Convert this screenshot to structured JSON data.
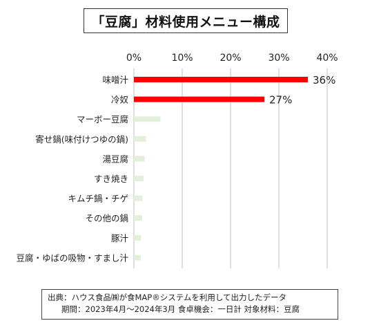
{
  "chart_data": {
    "type": "bar",
    "orientation": "horizontal",
    "title": "「豆腐」材料使用メニュー構成",
    "categories": [
      "味噌汁",
      "冷奴",
      "マーボー豆腐",
      "寄せ鍋(味付けつゆの鍋)",
      "湯豆腐",
      "すき焼き",
      "キムチ鍋・チゲ",
      "その他の鍋",
      "豚汁",
      "豆腐・ゆばの吸物・すまし汁"
    ],
    "values": [
      36,
      27,
      5.5,
      2.5,
      2.2,
      2.0,
      1.8,
      1.7,
      1.5,
      1.4
    ],
    "data_labels": [
      "36%",
      "27%",
      "",
      "",
      "",
      "",
      "",
      "",
      "",
      ""
    ],
    "xlim": [
      0,
      40
    ],
    "x_ticks": [
      "0%",
      "10%",
      "20%",
      "30%",
      "40%"
    ],
    "grid": true,
    "colors": {
      "highlight": "#ff0000",
      "other": "#e2f0d9",
      "grid": "#bfbfbf"
    }
  },
  "source": {
    "line1": "出典：ハウス食品㈱が食MAP®システムを利用して出力したデータ",
    "line2": "期間：2023年4月～2024年3月 食卓機会：一日計 対象材料：豆腐"
  }
}
